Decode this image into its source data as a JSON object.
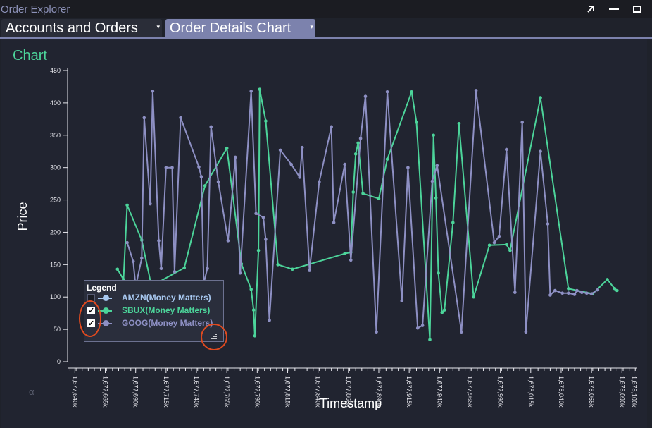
{
  "window": {
    "title": "Order Explorer"
  },
  "tabs": [
    {
      "label": "Accounts and Orders",
      "caret": "▾"
    },
    {
      "label": "Order Details Chart",
      "caret": "▾"
    }
  ],
  "chart_title": "Chart",
  "legend": {
    "title": "Legend",
    "items": [
      {
        "label": "AMZN(Money Matters)",
        "checked": false,
        "check_glyph": "",
        "color": "#a8c8f0"
      },
      {
        "label": "SBUX(Money Matters)",
        "checked": true,
        "check_glyph": "✓",
        "color": "#4cd49a"
      },
      {
        "label": "GOOG(Money Matters)",
        "checked": true,
        "check_glyph": "✓",
        "color": "#8e90c4"
      }
    ]
  },
  "footer_glyph": "α",
  "chart_data": {
    "type": "line",
    "title": "",
    "xlabel": "Timestamp",
    "ylabel": "Price",
    "ylim": [
      0,
      450
    ],
    "xlim": [
      1677634000,
      1678102000
    ],
    "y_ticks": [
      0,
      50,
      100,
      150,
      200,
      250,
      300,
      350,
      400,
      450
    ],
    "x_tick_labels": [
      "1,677,640k",
      "1,677,665k",
      "1,677,690k",
      "1,677,715k",
      "1,677,740k",
      "1,677,765k",
      "1,677,790k",
      "1,677,815k",
      "1,677,840k",
      "1,677,865k",
      "1,677,890k",
      "1,677,915k",
      "1,677,940k",
      "1,677,965k",
      "1,677,990k",
      "1,678,015k",
      "1,678,040k",
      "1,678,065k",
      "1,678,090k",
      "1,678,100k"
    ],
    "x_tick_values": [
      1677640000,
      1677665000,
      1677690000,
      1677715000,
      1677740000,
      1677765000,
      1677790000,
      1677815000,
      1677840000,
      1677865000,
      1677890000,
      1677915000,
      1677940000,
      1677965000,
      1677990000,
      1678015000,
      1678040000,
      1678065000,
      1678090000,
      1678100000
    ],
    "series": [
      {
        "name": "SBUX(Money Matters)",
        "color": "#4cd49a",
        "x": [
          1677675000,
          1677680000,
          1677683000,
          1677695000,
          1677703000,
          1677730000,
          1677747000,
          1677765000,
          1677777000,
          1677785000,
          1677787000,
          1677788000,
          1677791000,
          1677792000,
          1677797000,
          1677807000,
          1677819000,
          1677862000,
          1677867000,
          1677869000,
          1677871000,
          1677873000,
          1677877000,
          1677890000,
          1677897000,
          1677917000,
          1677921000,
          1677932000,
          1677935000,
          1677937000,
          1677939000,
          1677942000,
          1677944000,
          1677951000,
          1677956000,
          1677968000,
          1677981000,
          1677995000,
          1677998000,
          1678023000,
          1678046000,
          1678066000,
          1678078000,
          1678084000,
          1678086000
        ],
        "y": [
          143,
          127,
          242,
          188,
          117,
          145,
          272,
          330,
          151,
          112,
          80,
          40,
          172,
          421,
          372,
          150,
          143,
          167,
          169,
          262,
          321,
          338,
          260,
          252,
          313,
          417,
          370,
          34,
          350,
          253,
          137,
          76,
          80,
          215,
          368,
          100,
          180,
          181,
          172,
          408,
          113,
          105,
          127,
          113,
          110
        ]
      },
      {
        "name": "GOOG(Money Matters)",
        "color": "#8e90c4",
        "x": [
          1677683000,
          1677688000,
          1677690000,
          1677695000,
          1677697000,
          1677702000,
          1677704000,
          1677709000,
          1677711000,
          1677715000,
          1677720000,
          1677722000,
          1677727000,
          1677742000,
          1677744000,
          1677746000,
          1677749000,
          1677752000,
          1677758000,
          1677766000,
          1677772000,
          1677776000,
          1677785000,
          1677789000,
          1677795000,
          1677797000,
          1677800000,
          1677809000,
          1677818000,
          1677825000,
          1677827000,
          1677833000,
          1677841000,
          1677851000,
          1677853000,
          1677862000,
          1677867000,
          1677875000,
          1677879000,
          1677888000,
          1677897000,
          1677909000,
          1677914000,
          1677922000,
          1677926000,
          1677934000,
          1677938000,
          1677958000,
          1677970000,
          1677985000,
          1677989000,
          1677995000,
          1678002000,
          1678008000,
          1678011000,
          1678023000,
          1678029000,
          1678031000,
          1678035000,
          1678041000,
          1678046000,
          1678051000,
          1678053000,
          1678057000,
          1678061000,
          1678065000,
          1678070000
        ],
        "y": [
          184,
          155,
          116,
          160,
          377,
          244,
          418,
          187,
          144,
          300,
          300,
          139,
          377,
          301,
          286,
          121,
          144,
          363,
          278,
          187,
          316,
          137,
          418,
          229,
          223,
          189,
          64,
          327,
          305,
          285,
          331,
          141,
          278,
          363,
          215,
          305,
          157,
          345,
          410,
          46,
          417,
          94,
          300,
          52,
          56,
          279,
          303,
          46,
          419,
          184,
          194,
          328,
          107,
          370,
          46,
          325,
          213,
          103,
          110,
          106,
          106,
          104,
          110,
          107,
          106,
          105,
          111
        ]
      }
    ]
  }
}
